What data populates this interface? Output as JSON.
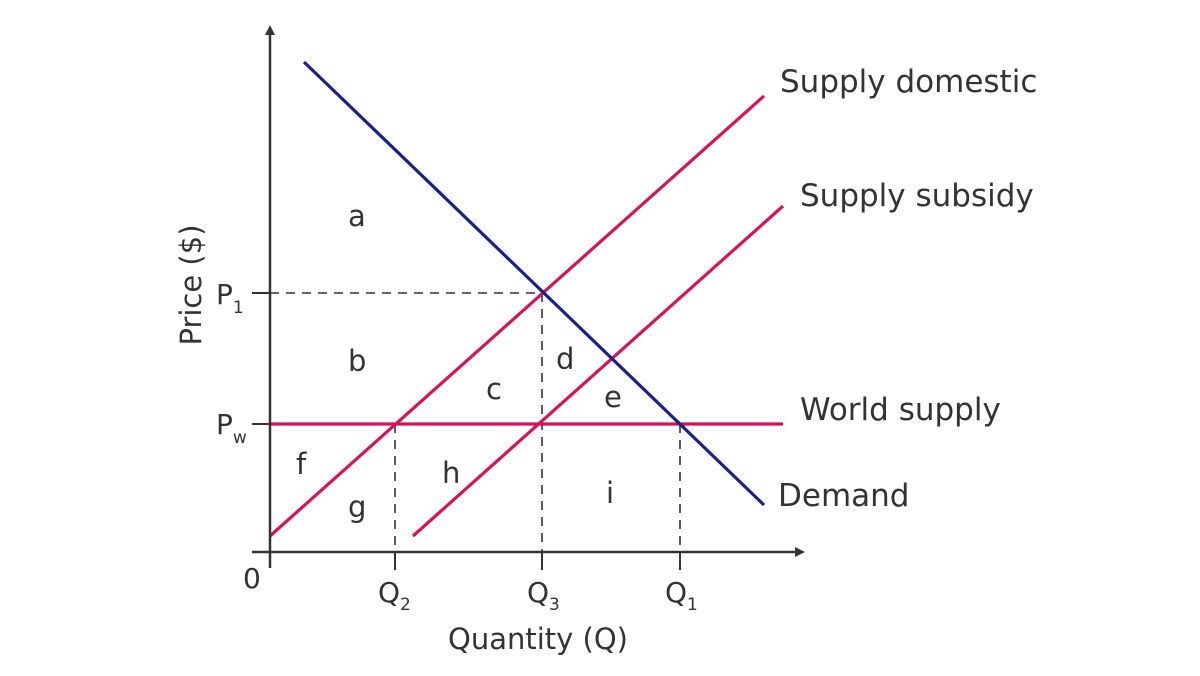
{
  "curves": {
    "supply_domestic": {
      "label": "Supply domestic",
      "color": "#d4145a"
    },
    "supply_subsidy": {
      "label": "Supply subsidy",
      "color": "#d4145a"
    },
    "world_supply": {
      "label": "World supply",
      "color": "#d4145a"
    },
    "demand": {
      "label": "Demand",
      "color": "#1a1f8c"
    }
  },
  "regions": [
    "a",
    "b",
    "c",
    "d",
    "e",
    "f",
    "g",
    "h",
    "i"
  ],
  "axes": {
    "x_title": "Quantity (Q)",
    "y_title": "Price ($)",
    "origin_label": "0",
    "color": "#333333",
    "x_ticks": [
      {
        "main": "Q",
        "sub": "2"
      },
      {
        "main": "Q",
        "sub": "3"
      },
      {
        "main": "Q",
        "sub": "1"
      }
    ],
    "y_ticks": [
      {
        "main": "P",
        "sub": "1"
      },
      {
        "main": "P",
        "sub": "w"
      }
    ]
  }
}
